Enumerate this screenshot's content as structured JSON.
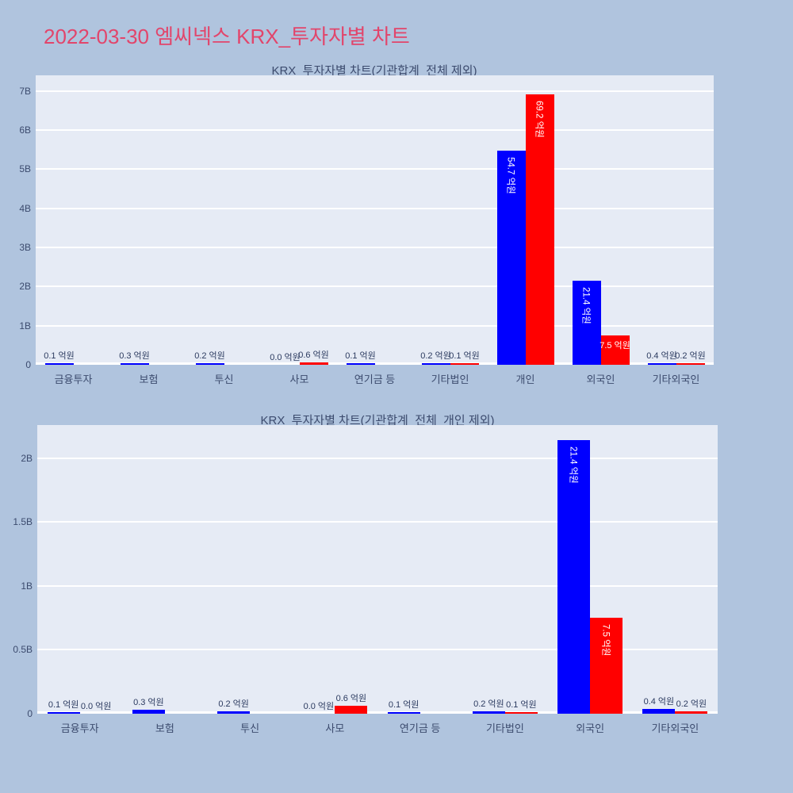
{
  "page": {
    "title": "2022-03-30 엠씨넥스 KRX_투자자별 차트",
    "title_color": "#e2456b",
    "background_color": "#b0c4de",
    "plot_background_color": "#e6ebf5",
    "gridline_color": "#ffffff"
  },
  "chart_data": [
    {
      "type": "bar",
      "title": "KRX_투자자별 차트(기관합계_전체 제외)",
      "unit": "억원",
      "grid": true,
      "legend": "none",
      "categories": [
        "금융투자",
        "보험",
        "투신",
        "사모",
        "연기금 등",
        "기타법인",
        "개인",
        "외국인",
        "기타외국인"
      ],
      "series": [
        {
          "name": "blue_series",
          "color": "#0000ff",
          "values_eokwon": [
            0.1,
            0.3,
            0.2,
            0.0,
            0.1,
            0.2,
            54.7,
            21.4,
            0.4
          ],
          "labels": [
            "0.1 억원",
            "0.3 억원",
            "0.2 억원",
            "0.0 억원",
            "0.1 억원",
            "0.2 억원",
            "54.7 억원",
            "21.4 억원",
            "0.4 억원"
          ]
        },
        {
          "name": "red_series",
          "color": "#ff0000",
          "values_eokwon": [
            0.0,
            0.0,
            0.0,
            0.6,
            0.0,
            0.1,
            69.2,
            7.5,
            0.2
          ],
          "labels": [
            null,
            null,
            null,
            "0.6 억원",
            null,
            "0.1 억원",
            "69.2 억원",
            "7.5 억원",
            "0.2 억원"
          ]
        }
      ],
      "ylim_B": [
        0,
        7.4
      ],
      "yticks": [
        {
          "label": "0",
          "value_B": 0
        },
        {
          "label": "1B",
          "value_B": 1
        },
        {
          "label": "2B",
          "value_B": 2
        },
        {
          "label": "3B",
          "value_B": 3
        },
        {
          "label": "4B",
          "value_B": 4
        },
        {
          "label": "5B",
          "value_B": 5
        },
        {
          "label": "6B",
          "value_B": 6
        },
        {
          "label": "7B",
          "value_B": 7
        }
      ]
    },
    {
      "type": "bar",
      "title": "KRX_투자자별 차트(기관합계_전체_개인 제외)",
      "unit": "억원",
      "grid": true,
      "legend": "none",
      "categories": [
        "금융투자",
        "보험",
        "투신",
        "사모",
        "연기금 등",
        "기타법인",
        "외국인",
        "기타외국인"
      ],
      "series": [
        {
          "name": "blue_series",
          "color": "#0000ff",
          "values_eokwon": [
            0.1,
            0.3,
            0.2,
            0.0,
            0.1,
            0.2,
            21.4,
            0.4
          ],
          "labels": [
            "0.1 억원",
            "0.3 억원",
            "0.2 억원",
            "0.0 억원",
            "0.1 억원",
            "0.2 억원",
            "21.4 억원",
            "0.4 억원"
          ]
        },
        {
          "name": "red_series",
          "color": "#ff0000",
          "values_eokwon": [
            0.0,
            0.0,
            0.0,
            0.6,
            0.0,
            0.1,
            7.5,
            0.2
          ],
          "labels": [
            "0.0 억원",
            null,
            null,
            "0.6 억원",
            null,
            "0.1 억원",
            "7.5 억원",
            "0.2 억원"
          ]
        }
      ],
      "ylim_B": [
        0,
        2.26
      ],
      "yticks": [
        {
          "label": "0",
          "value_B": 0
        },
        {
          "label": "0.5B",
          "value_B": 0.5
        },
        {
          "label": "1B",
          "value_B": 1
        },
        {
          "label": "1.5B",
          "value_B": 1.5
        },
        {
          "label": "2B",
          "value_B": 2
        }
      ]
    }
  ]
}
